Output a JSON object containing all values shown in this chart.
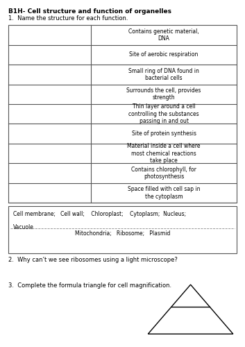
{
  "title": "B1H- Cell structure and function of organelles",
  "q1_text": "1.  Name the structure for each function.",
  "table_functions": [
    "Contains genetic material,\nDNA",
    "Site of aerobic respiration",
    "Small ring of DNA found in\nbacterial cells",
    "Surrounds the cell, provides\nstrength",
    "Thin layer around a cell\ncontrolling the substances\npassing in and out",
    "Site of protein synthesis",
    "Material inside a cell where\nmost chemical reactions\ntake place",
    "Contains chlorophyll, for\nphotosynthesis",
    "Space filled with cell sap in\nthe cytoplasm"
  ],
  "word_bank_line1": "Cell membrane;   Cell wall;    Chloroplast;    Cytoplasm;  Nucleus;",
  "word_bank_line2": "Vacuole",
  "word_bank_line3": "Mitochondria;   Ribosome;   Plasmid",
  "q2_text": "2.  Why can’t we see ribosomes using a light microscope?",
  "q3_text": "3.  Complete the formula triangle for cell magnification.",
  "bg_color": "#ffffff",
  "text_color": "#000000"
}
